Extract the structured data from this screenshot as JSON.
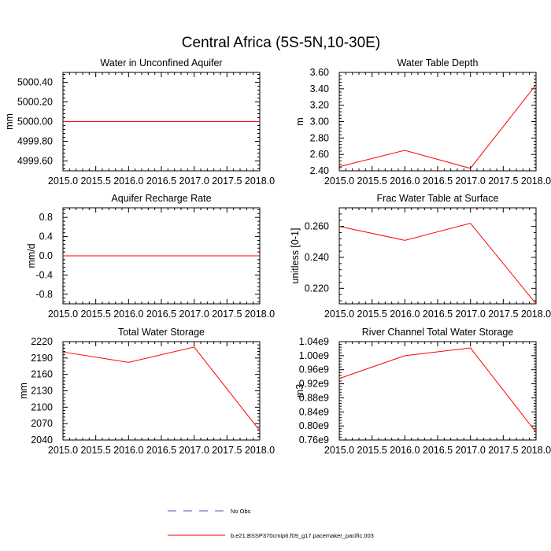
{
  "figure_title": "Central Africa (5S-5N,10-30E)",
  "colors": {
    "series": "#ff0000",
    "obs": "#5555aa",
    "axis": "#000000"
  },
  "legend": {
    "entries": [
      {
        "label": "No Obs",
        "style": "dashed",
        "color": "#5555aa"
      },
      {
        "label": "b.e21.BSSP370cmip6.f09_g17.pacemaker_pacific.003",
        "style": "solid",
        "color": "#ff0000"
      }
    ]
  },
  "chart_data": [
    {
      "type": "line",
      "title": "Water in Unconfined Aquifer",
      "ylabel": "mm",
      "x": [
        2015.0,
        2016.0,
        2017.0,
        2018.0
      ],
      "series": [
        {
          "name": "b.e21.BSSP370cmip6.f09_g17.pacemaker_pacific.003",
          "values": [
            5000.0,
            5000.0,
            5000.0,
            5000.0
          ]
        }
      ],
      "xlim": [
        2015.0,
        2018.0
      ],
      "ylim": [
        4999.5,
        5000.5
      ],
      "xticks": [
        "2015.0",
        "2015.5",
        "2016.0",
        "2016.5",
        "2017.0",
        "2017.5",
        "2018.0"
      ],
      "yticks": [
        {
          "value": 5000.4,
          "label": "5000.40"
        },
        {
          "value": 5000.2,
          "label": "5000.20"
        },
        {
          "value": 5000.0,
          "label": "5000.00"
        },
        {
          "value": 4999.8,
          "label": "4999.80"
        },
        {
          "value": 4999.6,
          "label": "4999.60"
        }
      ]
    },
    {
      "type": "line",
      "title": "Water Table Depth",
      "ylabel": "m",
      "x": [
        2015.0,
        2016.0,
        2017.0,
        2018.0
      ],
      "series": [
        {
          "name": "b.e21.BSSP370cmip6.f09_g17.pacemaker_pacific.003",
          "values": [
            2.45,
            2.65,
            2.43,
            3.45
          ]
        }
      ],
      "xlim": [
        2015.0,
        2018.0
      ],
      "ylim": [
        2.4,
        3.6
      ],
      "xticks": [
        "2015.0",
        "2015.5",
        "2016.0",
        "2016.5",
        "2017.0",
        "2017.5",
        "2018.0"
      ],
      "yticks": [
        {
          "value": 3.6,
          "label": "3.60"
        },
        {
          "value": 3.4,
          "label": "3.40"
        },
        {
          "value": 3.2,
          "label": "3.20"
        },
        {
          "value": 3.0,
          "label": "3.00"
        },
        {
          "value": 2.8,
          "label": "2.80"
        },
        {
          "value": 2.6,
          "label": "2.60"
        },
        {
          "value": 2.4,
          "label": "2.40"
        }
      ]
    },
    {
      "type": "line",
      "title": "Aquifer Recharge Rate",
      "ylabel": "mm/d",
      "x": [
        2015.0,
        2016.0,
        2017.0,
        2018.0
      ],
      "series": [
        {
          "name": "b.e21.BSSP370cmip6.f09_g17.pacemaker_pacific.003",
          "values": [
            0.0,
            0.0,
            0.0,
            0.0
          ]
        }
      ],
      "xlim": [
        2015.0,
        2018.0
      ],
      "ylim": [
        -1.0,
        1.0
      ],
      "xticks": [
        "2015.0",
        "2015.5",
        "2016.0",
        "2016.5",
        "2017.0",
        "2017.5",
        "2018.0"
      ],
      "yticks": [
        {
          "value": 0.8,
          "label": "0.8"
        },
        {
          "value": 0.4,
          "label": "0.4"
        },
        {
          "value": 0.0,
          "label": "0.0"
        },
        {
          "value": -0.4,
          "label": "-0.4"
        },
        {
          "value": -0.8,
          "label": "-0.8"
        }
      ]
    },
    {
      "type": "line",
      "title": "Frac Water Table at Surface",
      "ylabel": "unitless [0-1]",
      "x": [
        2015.0,
        2016.0,
        2017.0,
        2018.0
      ],
      "series": [
        {
          "name": "b.e21.BSSP370cmip6.f09_g17.pacemaker_pacific.003",
          "values": [
            0.26,
            0.251,
            0.262,
            0.21
          ]
        }
      ],
      "xlim": [
        2015.0,
        2018.0
      ],
      "ylim": [
        0.21,
        0.272
      ],
      "xticks": [
        "2015.0",
        "2015.5",
        "2016.0",
        "2016.5",
        "2017.0",
        "2017.5",
        "2018.0"
      ],
      "yticks": [
        {
          "value": 0.26,
          "label": "0.260"
        },
        {
          "value": 0.24,
          "label": "0.240"
        },
        {
          "value": 0.22,
          "label": "0.220"
        }
      ]
    },
    {
      "type": "line",
      "title": "Total Water Storage",
      "ylabel": "mm",
      "x": [
        2015.0,
        2016.0,
        2017.0,
        2018.0
      ],
      "series": [
        {
          "name": "b.e21.BSSP370cmip6.f09_g17.pacemaker_pacific.003",
          "values": [
            2201,
            2182,
            2210,
            2057
          ]
        }
      ],
      "xlim": [
        2015.0,
        2018.0
      ],
      "ylim": [
        2040,
        2220
      ],
      "xticks": [
        "2015.0",
        "2015.5",
        "2016.0",
        "2016.5",
        "2017.0",
        "2017.5",
        "2018.0"
      ],
      "yticks": [
        {
          "value": 2220,
          "label": "2220"
        },
        {
          "value": 2190,
          "label": "2190"
        },
        {
          "value": 2160,
          "label": "2160"
        },
        {
          "value": 2130,
          "label": "2130"
        },
        {
          "value": 2100,
          "label": "2100"
        },
        {
          "value": 2070,
          "label": "2070"
        },
        {
          "value": 2040,
          "label": "2040"
        }
      ]
    },
    {
      "type": "line",
      "title": "River Channel Total Water Storage",
      "ylabel": "m3",
      "x": [
        2015.0,
        2016.0,
        2017.0,
        2018.0
      ],
      "series": [
        {
          "name": "b.e21.BSSP370cmip6.f09_g17.pacemaker_pacific.003",
          "values": [
            935000000,
            1000000000,
            1022000000,
            782000000
          ]
        }
      ],
      "xlim": [
        2015.0,
        2018.0
      ],
      "ylim": [
        760000000,
        1040000000
      ],
      "xticks": [
        "2015.0",
        "2015.5",
        "2016.0",
        "2016.5",
        "2017.0",
        "2017.5",
        "2018.0"
      ],
      "yticks": [
        {
          "value": 1040000000,
          "label": "1.04e9"
        },
        {
          "value": 1000000000,
          "label": "1.00e9"
        },
        {
          "value": 960000000,
          "label": "0.96e9"
        },
        {
          "value": 920000000,
          "label": "0.92e9"
        },
        {
          "value": 880000000,
          "label": "0.88e9"
        },
        {
          "value": 840000000,
          "label": "0.84e9"
        },
        {
          "value": 800000000,
          "label": "0.80e9"
        },
        {
          "value": 760000000,
          "label": "0.76e9"
        }
      ]
    }
  ]
}
